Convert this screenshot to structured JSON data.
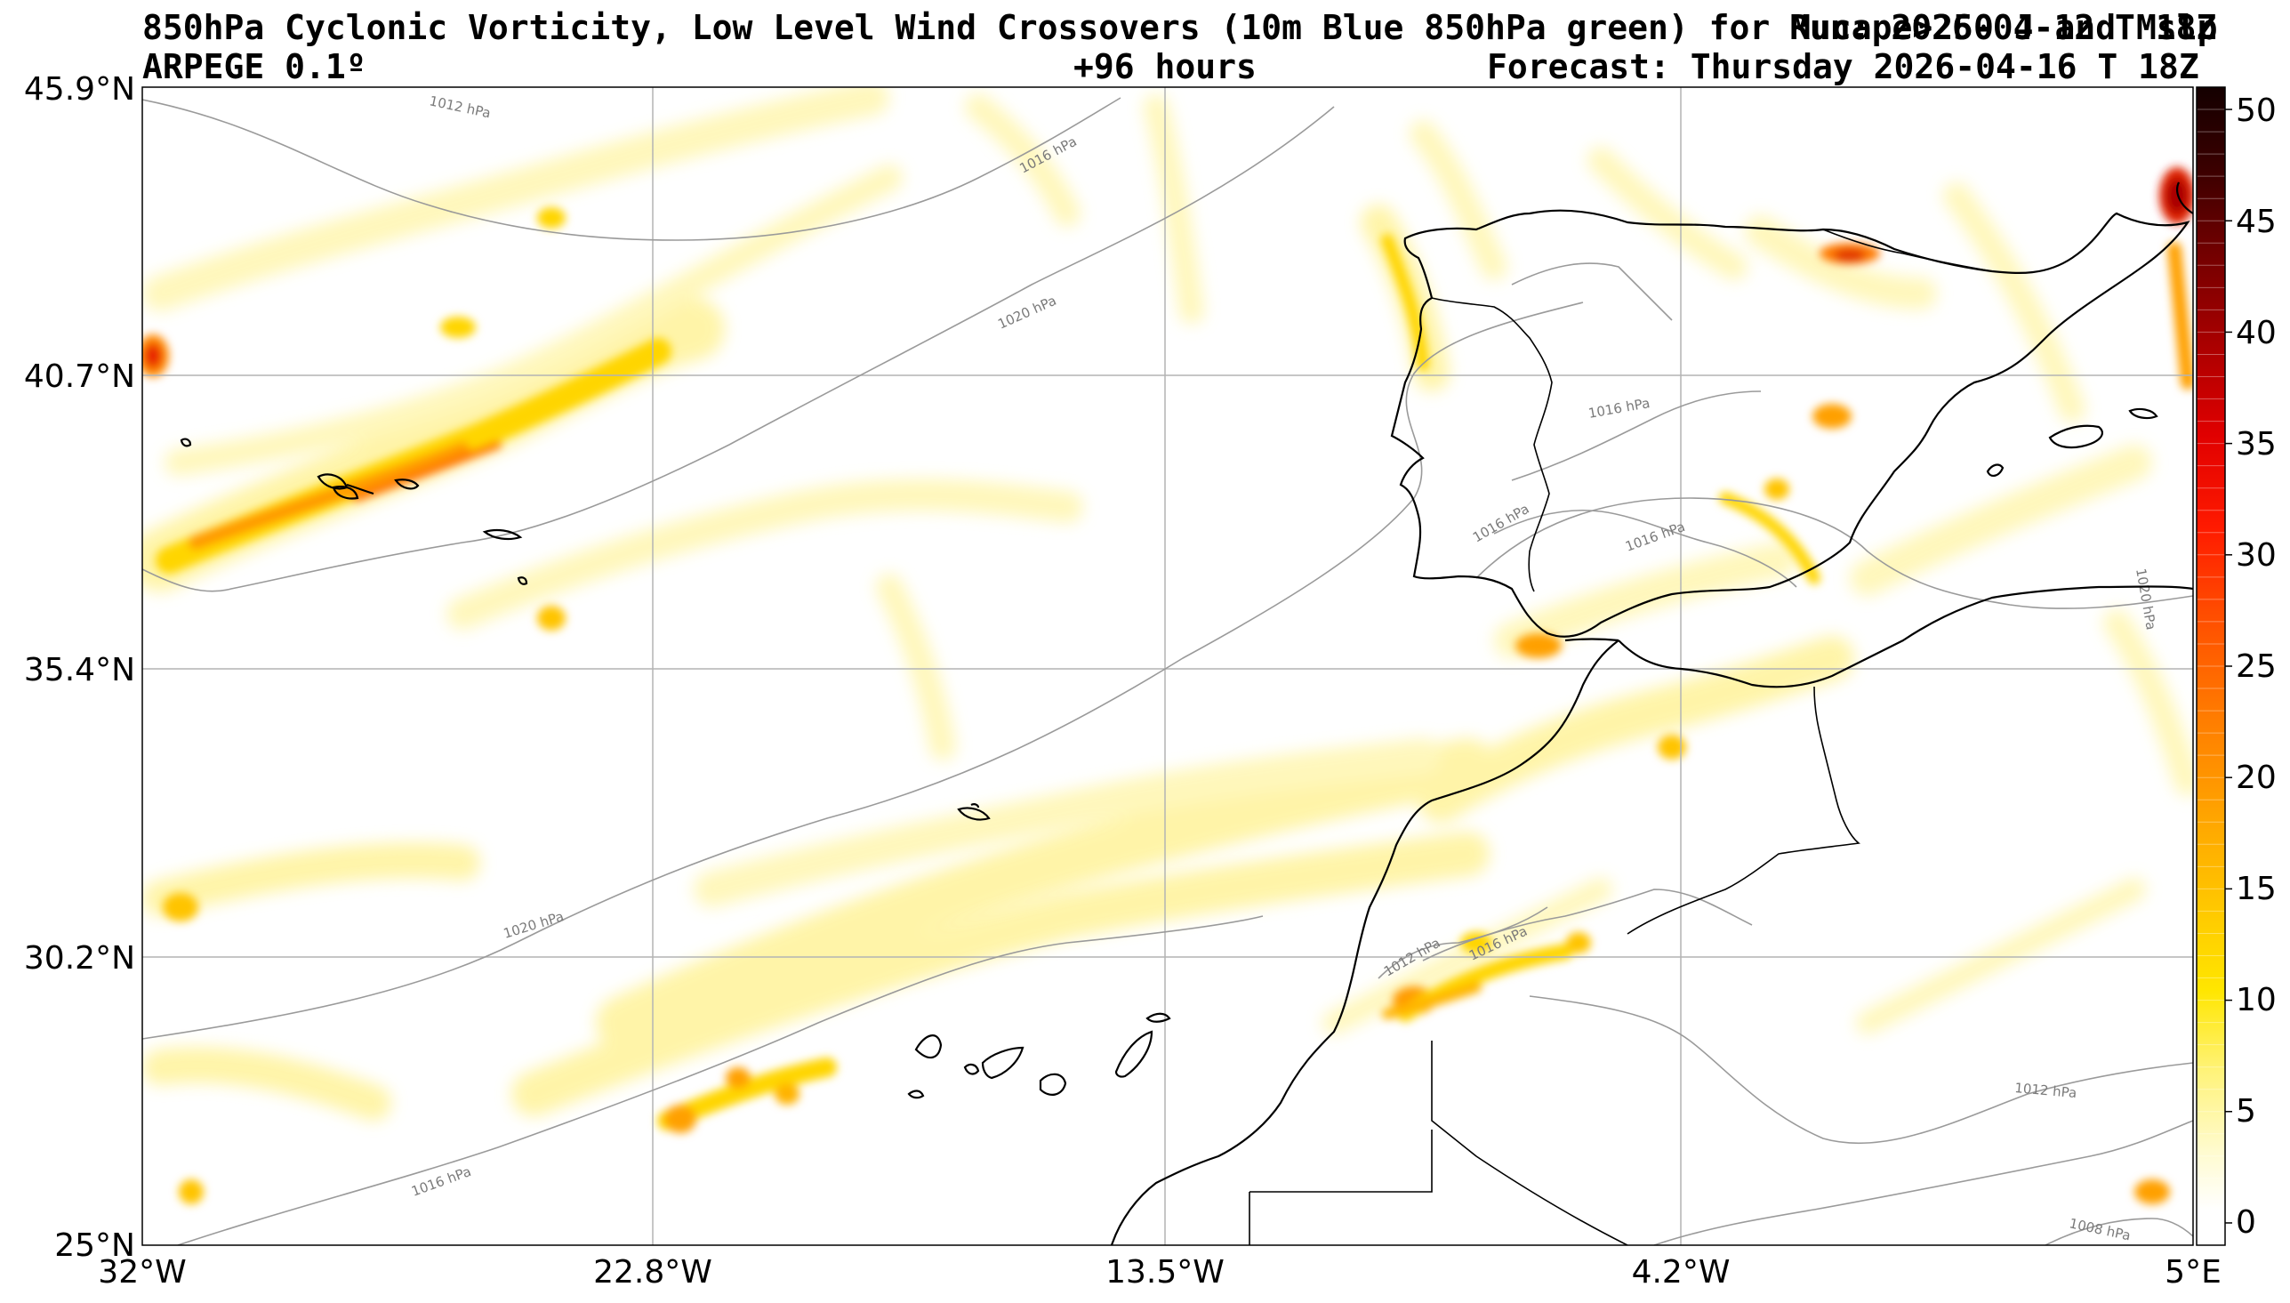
{
  "header": {
    "title": "850hPa Cyclonic Vorticity, Low Level Wind Crossovers (10m Blue 850hPa green) for Mucape>250 J and Mslp",
    "run": "Run: 2026-04-12 T 18Z",
    "model": "ARPEGE 0.1º",
    "lead": "+96 hours",
    "forecast": "Forecast: Thursday 2026-04-16 T 18Z"
  },
  "map": {
    "lat_ticks": [
      "45.9°N",
      "40.7°N",
      "35.4°N",
      "30.2°N",
      "25°N"
    ],
    "lon_ticks": [
      "32°W",
      "22.8°W",
      "13.5°W",
      "4.2°W",
      "5°E"
    ],
    "lat_range": [
      25.0,
      45.9
    ],
    "lon_range": [
      -32.0,
      5.0
    ],
    "isobar_labels": [
      "1012 hPa",
      "1016 hPa",
      "1020 hPa",
      "1020 hPa",
      "1016 hPa",
      "1016 hPa",
      "1016 hPa",
      "1020 hPa",
      "1012 hPa",
      "1016 hPa",
      "1012 hPa",
      "1008 hPa"
    ],
    "colors": {
      "vorticity_low": "#fff9a0",
      "vorticity_mid": "#ffd400",
      "vorticity_high": "#ff8a00",
      "vorticity_max": "#d21a00",
      "coast": "#000000",
      "isobar": "#9a9a9a",
      "grid": "#b0b0b0"
    }
  },
  "colorbar": {
    "labels": [
      "50",
      "45",
      "40",
      "35",
      "30",
      "25",
      "20",
      "15",
      "10",
      "5",
      "0"
    ],
    "range": [
      -1,
      51
    ]
  }
}
